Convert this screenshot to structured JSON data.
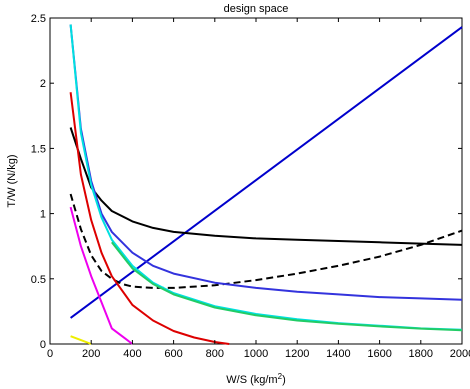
{
  "chart_data": {
    "type": "line",
    "title": "design space",
    "xlabel": "W/S (kg/m",
    "xlabel_sup": "2",
    "xlabel_tail": ")",
    "ylabel": "T/W (N/kg)",
    "xlim": [
      0,
      2000
    ],
    "ylim": [
      0,
      2.5
    ],
    "grid": false,
    "legend": "none",
    "x_ticks": [
      0,
      200,
      400,
      600,
      800,
      1000,
      1200,
      1400,
      1600,
      1800,
      2000
    ],
    "x_tick_labels": [
      "0",
      "200",
      "400",
      "600",
      "800",
      "1000",
      "1200",
      "1400",
      "1600",
      "1800",
      "2000"
    ],
    "y_ticks": [
      0,
      0.5,
      1,
      1.5,
      2,
      2.5
    ],
    "y_tick_labels": [
      "0",
      "0.5",
      "1",
      "1.5",
      "2",
      "2.5"
    ],
    "series": [
      {
        "color": "#0000cc",
        "style": "solid",
        "x": [
          100,
          2000
        ],
        "y": [
          0.2,
          2.43
        ]
      },
      {
        "color": "#000000",
        "style": "solid",
        "x": [
          100,
          150,
          200,
          250,
          300,
          400,
          500,
          600,
          800,
          1000,
          1200,
          1400,
          1600,
          1800,
          2000
        ],
        "y": [
          1.66,
          1.42,
          1.2,
          1.1,
          1.02,
          0.94,
          0.89,
          0.86,
          0.83,
          0.81,
          0.8,
          0.79,
          0.78,
          0.77,
          0.76
        ]
      },
      {
        "color": "#000000",
        "style": "dashed",
        "x": [
          100,
          150,
          200,
          250,
          300,
          350,
          400,
          500,
          600,
          700,
          800,
          1000,
          1200,
          1400,
          1600,
          1800,
          2000
        ],
        "y": [
          1.15,
          0.88,
          0.68,
          0.56,
          0.5,
          0.46,
          0.44,
          0.43,
          0.43,
          0.44,
          0.45,
          0.49,
          0.54,
          0.6,
          0.67,
          0.76,
          0.87
        ]
      },
      {
        "color": "#3333dd",
        "style": "solid",
        "x": [
          100,
          150,
          200,
          250,
          300,
          400,
          500,
          600,
          800,
          1000,
          1200,
          1400,
          1600,
          1800,
          2000
        ],
        "y": [
          2.45,
          1.65,
          1.25,
          1.0,
          0.86,
          0.7,
          0.6,
          0.54,
          0.47,
          0.43,
          0.4,
          0.38,
          0.36,
          0.35,
          0.34
        ]
      },
      {
        "color": "#00e0e0",
        "style": "solid",
        "x": [
          100,
          150,
          200,
          250,
          300,
          400,
          500,
          600,
          800,
          1000,
          1200,
          1400,
          1600,
          1800,
          2000
        ],
        "y": [
          2.45,
          1.62,
          1.22,
          0.97,
          0.8,
          0.6,
          0.47,
          0.39,
          0.29,
          0.23,
          0.19,
          0.16,
          0.14,
          0.12,
          0.11
        ]
      },
      {
        "color": "#22cc66",
        "style": "solid",
        "x": [
          300,
          400,
          500,
          600,
          800,
          1000,
          1200,
          1400,
          1600,
          1800,
          2000
        ],
        "y": [
          0.78,
          0.58,
          0.46,
          0.38,
          0.28,
          0.22,
          0.18,
          0.155,
          0.135,
          0.118,
          0.105
        ]
      },
      {
        "color": "#dd0000",
        "style": "solid",
        "x": [
          100,
          150,
          200,
          250,
          300,
          400,
          500,
          600,
          700,
          800,
          870
        ],
        "y": [
          1.93,
          1.3,
          0.95,
          0.7,
          0.52,
          0.3,
          0.18,
          0.1,
          0.05,
          0.015,
          0.0
        ]
      },
      {
        "color": "#ee00ee",
        "style": "solid",
        "x": [
          100,
          150,
          200,
          250,
          300,
          350,
          400
        ],
        "y": [
          1.05,
          0.75,
          0.52,
          0.32,
          0.12,
          0.06,
          0.0
        ]
      },
      {
        "color": "#eeee00",
        "style": "solid",
        "x": [
          100,
          150,
          200
        ],
        "y": [
          0.06,
          0.03,
          0.0
        ]
      }
    ]
  }
}
